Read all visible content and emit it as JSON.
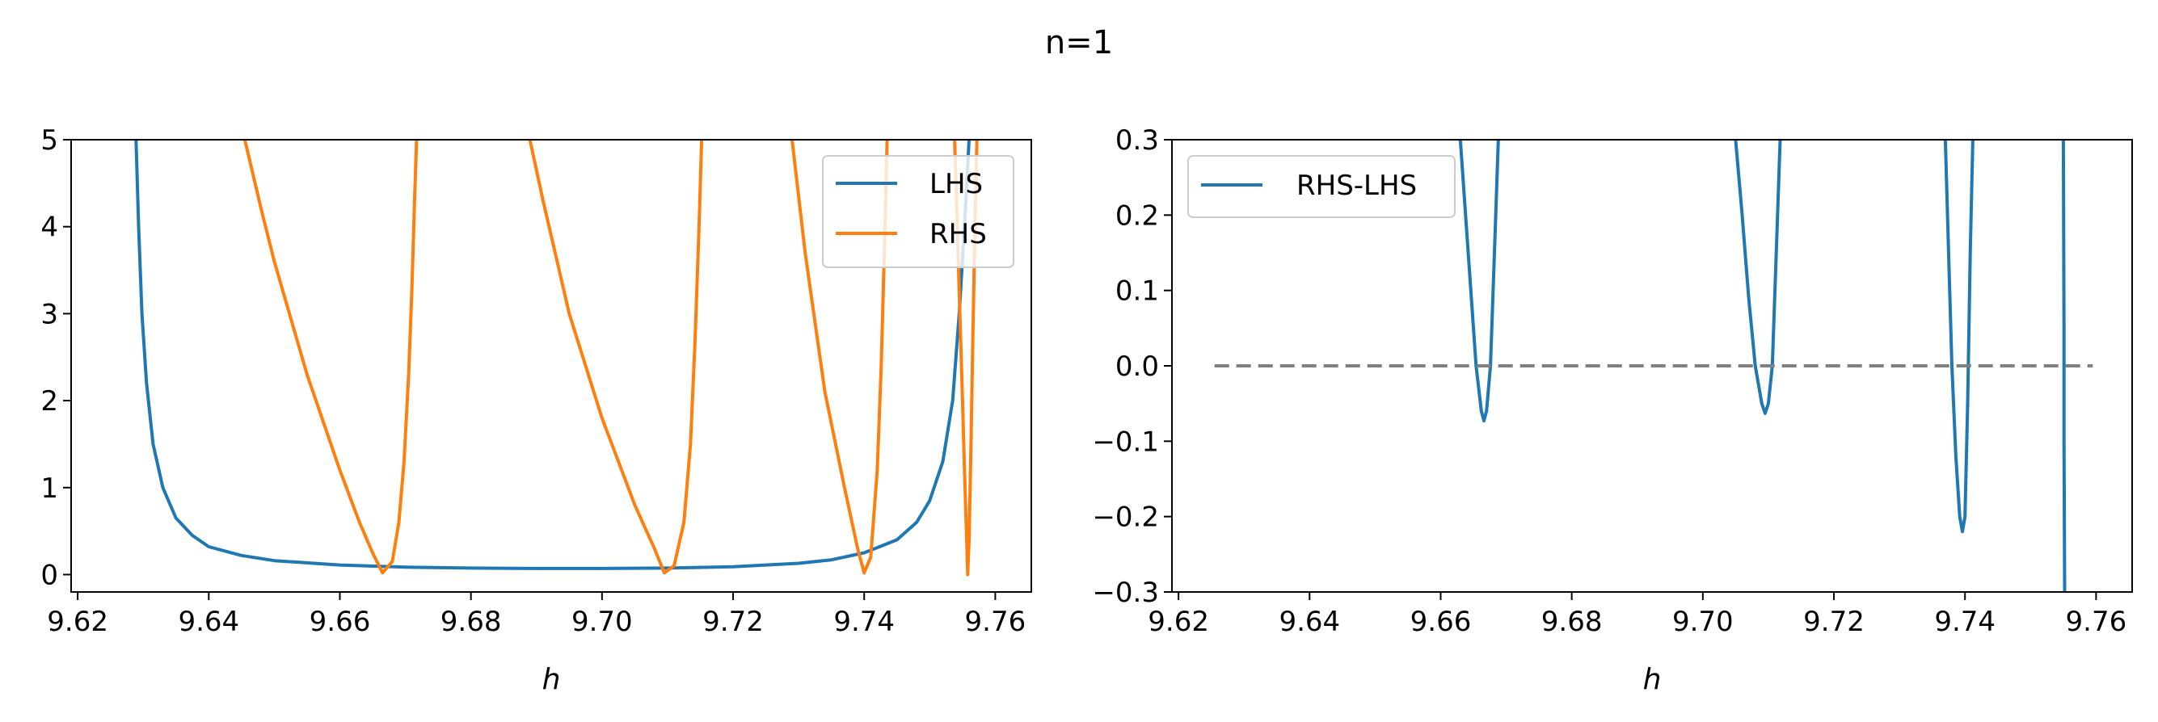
{
  "figure": {
    "title": "n=1"
  },
  "chart_data": [
    {
      "type": "line",
      "title": "",
      "xlabel": "h",
      "ylabel": "",
      "xlim": [
        9.619,
        9.7655
      ],
      "ylim": [
        -0.2,
        5
      ],
      "xticks": [
        9.62,
        9.64,
        9.66,
        9.68,
        9.7,
        9.72,
        9.74,
        9.76
      ],
      "xtick_labels": [
        "9.62",
        "9.64",
        "9.66",
        "9.68",
        "9.70",
        "9.72",
        "9.74",
        "9.76"
      ],
      "yticks": [
        0,
        1,
        2,
        3,
        4,
        5
      ],
      "ytick_labels": [
        "0",
        "1",
        "2",
        "3",
        "4",
        "5"
      ],
      "grid": false,
      "legend": "top-right",
      "series": [
        {
          "name": "LHS",
          "color": "#1f77b4",
          "x": [
            9.6289,
            9.6293,
            9.6298,
            9.6305,
            9.6315,
            9.633,
            9.635,
            9.6375,
            9.64,
            9.645,
            9.65,
            9.66,
            9.67,
            9.68,
            9.69,
            9.7,
            9.71,
            9.72,
            9.73,
            9.735,
            9.74,
            9.745,
            9.748,
            9.75,
            9.752,
            9.7535,
            9.7545,
            9.7553,
            9.756
          ],
          "y": [
            5.0,
            4.0,
            3.0,
            2.2,
            1.5,
            1.0,
            0.65,
            0.45,
            0.32,
            0.22,
            0.16,
            0.11,
            0.085,
            0.075,
            0.07,
            0.07,
            0.075,
            0.09,
            0.13,
            0.17,
            0.25,
            0.4,
            0.6,
            0.85,
            1.3,
            2.0,
            3.0,
            4.0,
            5.0
          ]
        },
        {
          "name": "RHS",
          "color": "#ff7f0e",
          "segments": [
            {
              "x": [
                9.6455,
                9.648,
                9.65,
                9.655,
                9.66,
                9.663,
                9.665,
                9.6665,
                9.668,
                9.669,
                9.6698,
                9.6705,
                9.671,
                9.6714,
                9.6717
              ],
              "y": [
                5.0,
                4.2,
                3.6,
                2.3,
                1.2,
                0.6,
                0.25,
                0.02,
                0.15,
                0.6,
                1.3,
                2.3,
                3.3,
                4.3,
                5.0
              ]
            },
            {
              "x": [
                9.689,
                9.691,
                9.695,
                9.7,
                9.705,
                9.708,
                9.7095,
                9.711,
                9.7125,
                9.7135,
                9.7142,
                9.7148,
                9.7152
              ],
              "y": [
                5.0,
                4.3,
                3.0,
                1.8,
                0.8,
                0.3,
                0.02,
                0.1,
                0.6,
                1.5,
                2.7,
                4.0,
                5.0
              ]
            },
            {
              "x": [
                9.729,
                9.731,
                9.734,
                9.737,
                9.739,
                9.74,
                9.741,
                9.742,
                9.7426,
                9.7431,
                9.7435
              ],
              "y": [
                5.0,
                3.7,
                2.1,
                1.0,
                0.3,
                0.02,
                0.2,
                1.2,
                2.4,
                3.8,
                5.0
              ]
            },
            {
              "x": [
                9.7538,
                9.7542,
                9.7546,
                9.755,
                9.7553,
                9.7556,
                9.7558,
                9.756,
                9.7563,
                9.7566,
                9.7569,
                9.7572
              ],
              "y": [
                5.0,
                4.0,
                3.0,
                2.0,
                1.2,
                0.5,
                0.0,
                0.4,
                1.5,
                2.8,
                4.0,
                5.0
              ]
            }
          ]
        }
      ]
    },
    {
      "type": "line",
      "title": "",
      "xlabel": "h",
      "ylabel": "",
      "xlim": [
        9.619,
        9.7655
      ],
      "ylim": [
        -0.3,
        0.3
      ],
      "xticks": [
        9.62,
        9.64,
        9.66,
        9.68,
        9.7,
        9.72,
        9.74,
        9.76
      ],
      "xtick_labels": [
        "9.62",
        "9.64",
        "9.66",
        "9.68",
        "9.70",
        "9.72",
        "9.74",
        "9.76"
      ],
      "yticks": [
        -0.3,
        -0.2,
        -0.1,
        0.0,
        0.1,
        0.2,
        0.3
      ],
      "ytick_labels": [
        "−0.3",
        "−0.2",
        "−0.1",
        "0.0",
        "0.1",
        "0.2",
        "0.3"
      ],
      "grid": false,
      "legend": "top-left",
      "series": [
        {
          "name": "RHS-LHS",
          "color": "#1f77b4",
          "segments": [
            {
              "x": [
                9.663,
                9.6638,
                9.6646,
                9.6654,
                9.6662,
                9.6666,
                9.667,
                9.6676,
                9.6682,
                9.6688
              ],
              "y": [
                0.3,
                0.2,
                0.1,
                0.0,
                -0.06,
                -0.073,
                -0.06,
                0.0,
                0.15,
                0.3
              ]
            },
            {
              "x": [
                9.705,
                9.706,
                9.707,
                9.708,
                9.709,
                9.7095,
                9.71,
                9.7106,
                9.7112,
                9.7118
              ],
              "y": [
                0.3,
                0.2,
                0.09,
                0.0,
                -0.05,
                -0.063,
                -0.05,
                0.0,
                0.15,
                0.3
              ]
            },
            {
              "x": [
                9.737,
                9.7375,
                9.738,
                9.7386,
                9.7392,
                9.7396,
                9.74,
                9.7404,
                9.7408,
                9.7412
              ],
              "y": [
                0.3,
                0.15,
                0.0,
                -0.12,
                -0.2,
                -0.22,
                -0.2,
                -0.05,
                0.15,
                0.3
              ]
            },
            {
              "x": [
                9.755,
                9.7551,
                9.7551,
                9.7552
              ],
              "y": [
                0.3,
                0.05,
                -0.1,
                -0.3
              ]
            }
          ]
        },
        {
          "name": "zero-line",
          "color": "#808080",
          "dashed": true,
          "x": [
            9.6255,
            9.7595
          ],
          "y": [
            0,
            0
          ]
        }
      ]
    }
  ]
}
